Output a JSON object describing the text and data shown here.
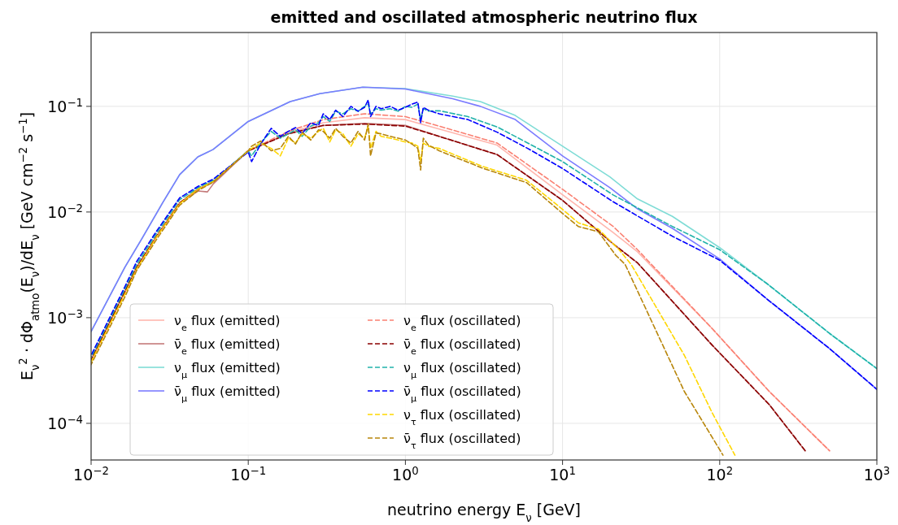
{
  "chart_data": {
    "type": "line",
    "title": "emitted and oscillated atmospheric neutrino flux",
    "xlabel": "neutrino energy E$_{ν}$ [GeV]",
    "ylabel": "E$_{ν}$$^{2}$ · dΦ$_{atmo}$(E$_{ν}$)/dE$_{ν}$   [GeV cm$^{−2}$ s$^{−1}$]",
    "log": "xy",
    "grid": true,
    "legend": "bottom left",
    "marker": "none",
    "xlim": [
      0.01,
      1000
    ],
    "ylim": [
      4.5e-05,
      0.5
    ],
    "xticks": [
      {
        "value": 0.01,
        "label": "10$^{−2}$"
      },
      {
        "value": 0.1,
        "label": "10$^{−1}$"
      },
      {
        "value": 1,
        "label": "10$^{0}$"
      },
      {
        "value": 10,
        "label": "10$^{1}$"
      },
      {
        "value": 100,
        "label": "10$^{2}$"
      },
      {
        "value": 1000,
        "label": "10$^{3}$"
      }
    ],
    "yticks": [
      {
        "value": 0.0001,
        "label": "10$^{−4}$"
      },
      {
        "value": 0.001,
        "label": "10$^{−3}$"
      },
      {
        "value": 0.01,
        "label": "10$^{−2}$"
      },
      {
        "value": 0.1,
        "label": "10$^{−1}$"
      }
    ],
    "series": [
      {
        "name": "ν$_{e}$ flux (emitted)",
        "color": "#ffb6ae",
        "line_style": "solid",
        "x": [
          0.01,
          0.0165,
          0.0195,
          0.0263,
          0.0366,
          0.048,
          0.06,
          0.1,
          0.18,
          0.3,
          0.55,
          1,
          1.64,
          3.83,
          10,
          21,
          30,
          89.5,
          207,
          500
        ],
        "values": [
          0.00039,
          0.0018,
          0.003,
          0.006,
          0.0122,
          0.0165,
          0.0194,
          0.038,
          0.056,
          0.07,
          0.078,
          0.075,
          0.061,
          0.043,
          0.0146,
          0.0064,
          0.0042,
          0.00079,
          0.0002,
          5.5e-05
        ]
      },
      {
        "name": "ν̄$_{e}$ flux (emitted)",
        "color": "#c47a7a",
        "line_style": "solid",
        "x": [
          0.01,
          0.0165,
          0.0195,
          0.0263,
          0.0366,
          0.048,
          0.055,
          0.06,
          0.1,
          0.18,
          0.3,
          0.55,
          1,
          1.64,
          3.83,
          10,
          21,
          30,
          89.5,
          207,
          350
        ],
        "values": [
          0.0004,
          0.0018,
          0.003,
          0.006,
          0.0122,
          0.0158,
          0.0155,
          0.0185,
          0.038,
          0.055,
          0.066,
          0.069,
          0.066,
          0.052,
          0.035,
          0.0129,
          0.005,
          0.0033,
          0.00055,
          0.00015,
          5.5e-05
        ]
      },
      {
        "name": "ν$_{μ}$ flux (emitted)",
        "color": "#7fdcd6",
        "line_style": "solid",
        "x": [
          0.01,
          0.0164,
          0.0212,
          0.0285,
          0.0366,
          0.0478,
          0.0598,
          0.1,
          0.185,
          0.285,
          0.536,
          1,
          2,
          3,
          5,
          10,
          20,
          30,
          50,
          100,
          200,
          300,
          500,
          1000
        ],
        "values": [
          0.00074,
          0.003,
          0.0057,
          0.0122,
          0.0226,
          0.0333,
          0.0391,
          0.072,
          0.111,
          0.132,
          0.152,
          0.147,
          0.125,
          0.111,
          0.082,
          0.042,
          0.0215,
          0.0133,
          0.0091,
          0.0046,
          0.0021,
          0.0013,
          0.00071,
          0.00033
        ]
      },
      {
        "name": "ν̄$_{μ}$ flux (emitted)",
        "color": "#7b7bff",
        "line_style": "solid",
        "x": [
          0.01,
          0.0164,
          0.0212,
          0.0285,
          0.0366,
          0.0478,
          0.0598,
          0.1,
          0.185,
          0.285,
          0.536,
          1,
          2,
          3,
          5,
          10,
          20,
          30,
          50,
          100,
          200,
          300,
          500,
          1000
        ],
        "values": [
          0.00074,
          0.003,
          0.0057,
          0.0122,
          0.0226,
          0.0333,
          0.0391,
          0.072,
          0.111,
          0.132,
          0.152,
          0.146,
          0.118,
          0.1,
          0.075,
          0.034,
          0.017,
          0.0107,
          0.007,
          0.0036,
          0.0015,
          0.00093,
          0.00051,
          0.00021
        ]
      },
      {
        "name": "ν$_{e}$ flux (oscillated)",
        "color": "#fa8072",
        "line_style": "dashed",
        "x": [
          0.01,
          0.0165,
          0.0195,
          0.0263,
          0.0366,
          0.048,
          0.06,
          0.1,
          0.18,
          0.3,
          0.55,
          1,
          1.64,
          3.83,
          10,
          21,
          30,
          89.5,
          207,
          500
        ],
        "values": [
          0.00039,
          0.0018,
          0.003,
          0.006,
          0.0122,
          0.0165,
          0.0194,
          0.038,
          0.058,
          0.075,
          0.085,
          0.08,
          0.065,
          0.045,
          0.0164,
          0.0073,
          0.0044,
          0.00079,
          0.0002,
          5.5e-05
        ]
      },
      {
        "name": "ν̄$_{e}$ flux (oscillated)",
        "color": "#8b0000",
        "line_style": "dashed",
        "x": [
          0.01,
          0.0165,
          0.0195,
          0.0263,
          0.0366,
          0.048,
          0.06,
          0.1,
          0.18,
          0.3,
          0.55,
          1,
          1.64,
          3.83,
          10,
          21,
          30,
          89.5,
          207,
          350
        ],
        "values": [
          0.0004,
          0.0018,
          0.003,
          0.006,
          0.0122,
          0.0165,
          0.0194,
          0.038,
          0.055,
          0.066,
          0.068,
          0.065,
          0.052,
          0.035,
          0.0129,
          0.005,
          0.0033,
          0.00055,
          0.00015,
          5.5e-05
        ]
      },
      {
        "name": "ν$_{μ}$ flux (oscillated)",
        "color": "#20b2aa",
        "line_style": "dashed",
        "x": [
          0.01,
          0.0165,
          0.0195,
          0.0263,
          0.0366,
          0.048,
          0.06,
          0.1,
          0.105,
          0.12,
          0.14,
          0.16,
          0.18,
          0.2,
          0.22,
          0.25,
          0.28,
          0.3,
          0.33,
          0.36,
          0.4,
          0.45,
          0.5,
          0.55,
          0.58,
          0.6,
          0.65,
          0.7,
          0.8,
          0.9,
          1,
          1.1,
          1.2,
          1.25,
          1.3,
          1.4,
          1.64,
          2.5,
          3.83,
          6,
          10,
          21,
          50,
          100,
          200,
          300,
          500,
          1000
        ],
        "values": [
          0.00042,
          0.0019,
          0.0032,
          0.0064,
          0.0131,
          0.017,
          0.02,
          0.038,
          0.034,
          0.045,
          0.058,
          0.05,
          0.055,
          0.06,
          0.052,
          0.065,
          0.07,
          0.08,
          0.072,
          0.09,
          0.085,
          0.095,
          0.09,
          0.1,
          0.105,
          0.085,
          0.095,
          0.092,
          0.095,
          0.09,
          0.1,
          0.098,
          0.105,
          0.075,
          0.095,
          0.09,
          0.091,
          0.08,
          0.064,
          0.045,
          0.03,
          0.0145,
          0.0073,
          0.0044,
          0.0021,
          0.0013,
          0.00071,
          0.00033
        ]
      },
      {
        "name": "ν̄$_{μ}$ flux (oscillated)",
        "color": "#0000ff",
        "line_style": "dashed",
        "x": [
          0.01,
          0.0165,
          0.0195,
          0.0263,
          0.0366,
          0.048,
          0.06,
          0.1,
          0.105,
          0.12,
          0.14,
          0.16,
          0.18,
          0.2,
          0.22,
          0.25,
          0.28,
          0.3,
          0.33,
          0.36,
          0.4,
          0.45,
          0.5,
          0.55,
          0.58,
          0.6,
          0.65,
          0.7,
          0.8,
          0.9,
          1,
          1.1,
          1.2,
          1.25,
          1.3,
          1.4,
          1.64,
          2.5,
          3.83,
          6,
          10,
          21,
          50,
          100,
          200,
          300,
          500,
          1000
        ],
        "values": [
          0.00044,
          0.002,
          0.0034,
          0.0067,
          0.0136,
          0.0175,
          0.0205,
          0.037,
          0.03,
          0.044,
          0.062,
          0.052,
          0.058,
          0.063,
          0.055,
          0.07,
          0.066,
          0.085,
          0.075,
          0.092,
          0.08,
          0.1,
          0.09,
          0.098,
          0.115,
          0.08,
          0.1,
          0.095,
          0.1,
          0.092,
          0.098,
          0.105,
          0.11,
          0.07,
          0.098,
          0.092,
          0.085,
          0.075,
          0.057,
          0.04,
          0.0258,
          0.0125,
          0.0059,
          0.0035,
          0.0015,
          0.00093,
          0.00051,
          0.00021
        ]
      },
      {
        "name": "ν$_{τ}$ flux (oscillated)",
        "color": "#ffd700",
        "line_style": "dashed",
        "x": [
          0.01,
          0.0165,
          0.0195,
          0.0263,
          0.0366,
          0.048,
          0.06,
          0.1,
          0.105,
          0.12,
          0.14,
          0.16,
          0.18,
          0.2,
          0.22,
          0.25,
          0.28,
          0.3,
          0.33,
          0.36,
          0.4,
          0.45,
          0.5,
          0.55,
          0.58,
          0.6,
          0.65,
          0.7,
          0.8,
          0.9,
          1,
          1.1,
          1.2,
          1.25,
          1.3,
          1.4,
          1.64,
          3.1,
          5.9,
          10,
          12.6,
          16.9,
          22.9,
          27.3,
          59.6,
          89.5,
          125
        ],
        "values": [
          0.00038,
          0.0017,
          0.0029,
          0.0059,
          0.012,
          0.0165,
          0.0194,
          0.038,
          0.04,
          0.045,
          0.04,
          0.034,
          0.05,
          0.045,
          0.055,
          0.05,
          0.058,
          0.062,
          0.046,
          0.06,
          0.055,
          0.042,
          0.055,
          0.05,
          0.065,
          0.04,
          0.058,
          0.052,
          0.05,
          0.048,
          0.046,
          0.045,
          0.042,
          0.03,
          0.045,
          0.042,
          0.04,
          0.027,
          0.02,
          0.0106,
          0.0079,
          0.0069,
          0.0044,
          0.0032,
          0.00044,
          0.000126,
          5e-05
        ]
      },
      {
        "name": "ν̄$_{τ}$ flux (oscillated)",
        "color": "#b8860b",
        "line_style": "dashed",
        "x": [
          0.01,
          0.0165,
          0.0195,
          0.0263,
          0.0366,
          0.048,
          0.06,
          0.1,
          0.105,
          0.12,
          0.14,
          0.16,
          0.18,
          0.2,
          0.22,
          0.25,
          0.28,
          0.3,
          0.33,
          0.36,
          0.4,
          0.45,
          0.5,
          0.55,
          0.58,
          0.6,
          0.65,
          0.7,
          0.8,
          0.9,
          1,
          1.1,
          1.2,
          1.25,
          1.3,
          1.4,
          1.64,
          3.1,
          5.9,
          10,
          12.6,
          16.9,
          21.8,
          25,
          59.6,
          105
        ],
        "values": [
          0.00036,
          0.0016,
          0.0028,
          0.0056,
          0.0116,
          0.016,
          0.0192,
          0.038,
          0.042,
          0.047,
          0.038,
          0.04,
          0.052,
          0.044,
          0.057,
          0.048,
          0.06,
          0.058,
          0.05,
          0.062,
          0.052,
          0.045,
          0.058,
          0.048,
          0.068,
          0.034,
          0.056,
          0.055,
          0.052,
          0.05,
          0.048,
          0.044,
          0.04,
          0.025,
          0.05,
          0.043,
          0.038,
          0.026,
          0.019,
          0.0097,
          0.0073,
          0.0065,
          0.0039,
          0.0032,
          0.0002,
          5e-05
        ]
      }
    ]
  }
}
